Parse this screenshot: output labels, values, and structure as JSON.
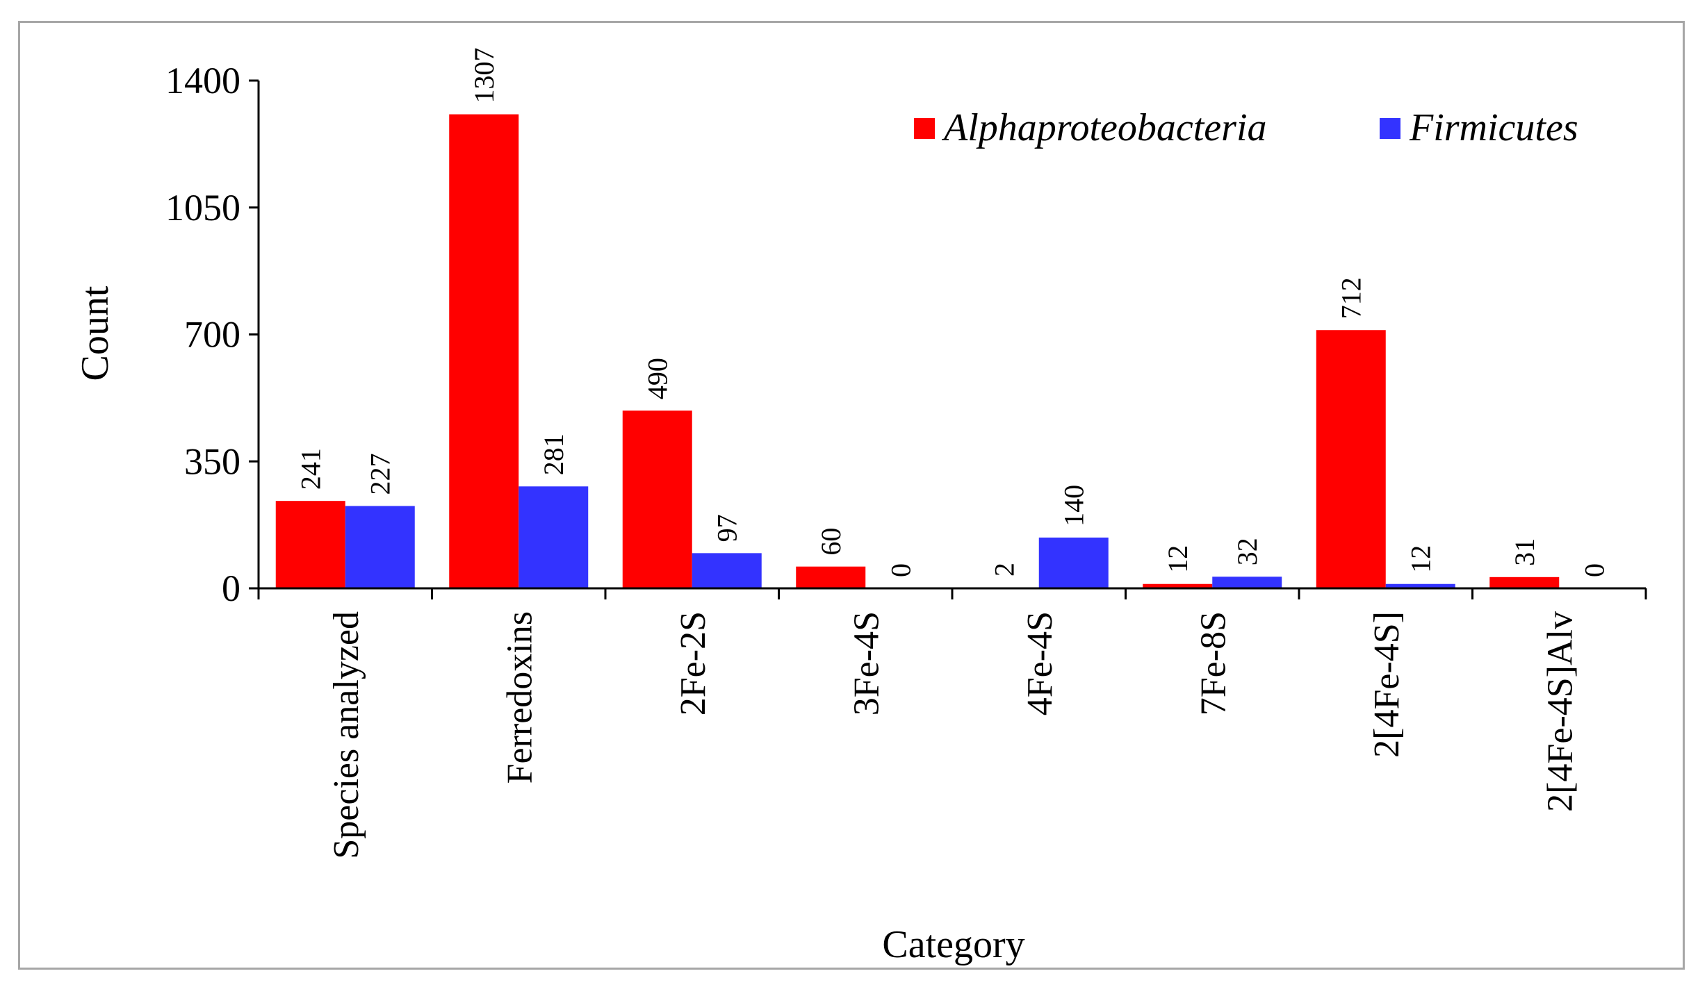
{
  "chart_data": {
    "type": "bar",
    "title": "",
    "xlabel": "Category",
    "ylabel": "Count",
    "ylim": [
      0,
      1400
    ],
    "yticks": [
      "0",
      "350",
      "700",
      "1050",
      "1400"
    ],
    "ytick_values": [
      0,
      350,
      700,
      1050,
      1400
    ],
    "grid": false,
    "legend_position": "top-right",
    "categories": [
      "Species analyzed",
      "Ferredoxins",
      "2Fe-2S",
      "3Fe-4S",
      "4Fe-4S",
      "7Fe-8S",
      "2[4Fe-4S]",
      "2[4Fe-4S]Alv"
    ],
    "series": [
      {
        "name": "Alphaproteobacteria",
        "color": "#ff0000",
        "values": [
          241,
          1307,
          490,
          60,
          2,
          12,
          712,
          31
        ]
      },
      {
        "name": "Firmicutes",
        "color": "#3333ff",
        "values": [
          227,
          281,
          97,
          0,
          140,
          32,
          12,
          0
        ]
      }
    ]
  }
}
